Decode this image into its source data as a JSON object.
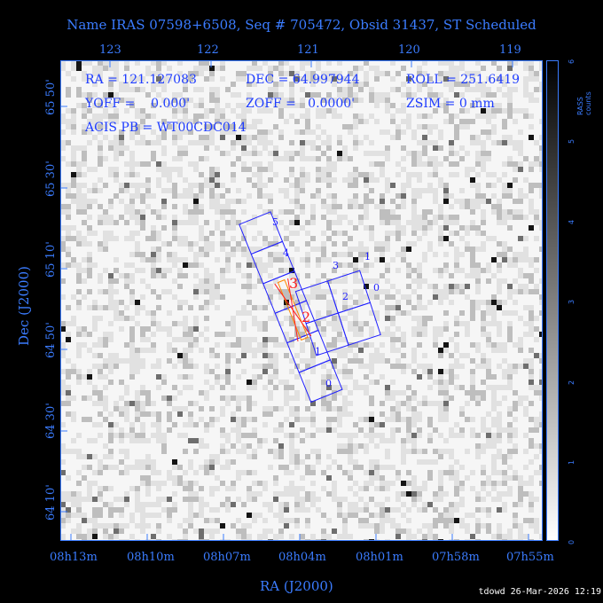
{
  "title": "Name IRAS 07598+6508, Seq # 705472, Obsid 31437, ST Scheduled",
  "info": {
    "ra": "RA = 121.127083",
    "dec": "DEC = 64.997944",
    "roll": "ROLL = 251.6419",
    "yoff": "YOFF =    0.000'",
    "zoff": "ZOFF =   0.0000'",
    "zsim": "ZSIM = 0 mm",
    "acis_pb": "ACIS PB = WT00CDC014"
  },
  "axes": {
    "x_title": "RA (J2000)",
    "y_title": "Dec (J2000)",
    "x_ticks": [
      "08h13m",
      "08h10m",
      "08h07m",
      "08h04m",
      "08h01m",
      "07h58m",
      "07h55m"
    ],
    "top_ticks": [
      "123",
      "122",
      "121",
      "120",
      "119"
    ],
    "y_ticks": [
      "65 50'",
      "65 30'",
      "65 10'",
      "64 50'",
      "64 30'",
      "64 10'"
    ]
  },
  "colorbar": {
    "label": "RASS counts",
    "ticks": [
      "0",
      "1",
      "2",
      "3",
      "4",
      "5",
      "6"
    ]
  },
  "chips": {
    "i_array": [
      "3",
      "1",
      "2",
      "0"
    ],
    "s_array": [
      "5",
      "4",
      "3",
      "2",
      "1",
      "0"
    ]
  },
  "colors": {
    "axis": "#3b7cff",
    "chip_outline": "#2020ff",
    "grating": "#ff2020",
    "slit": "#ff8800"
  },
  "footer": "tdowd 26-Mar-2026 12:19"
}
